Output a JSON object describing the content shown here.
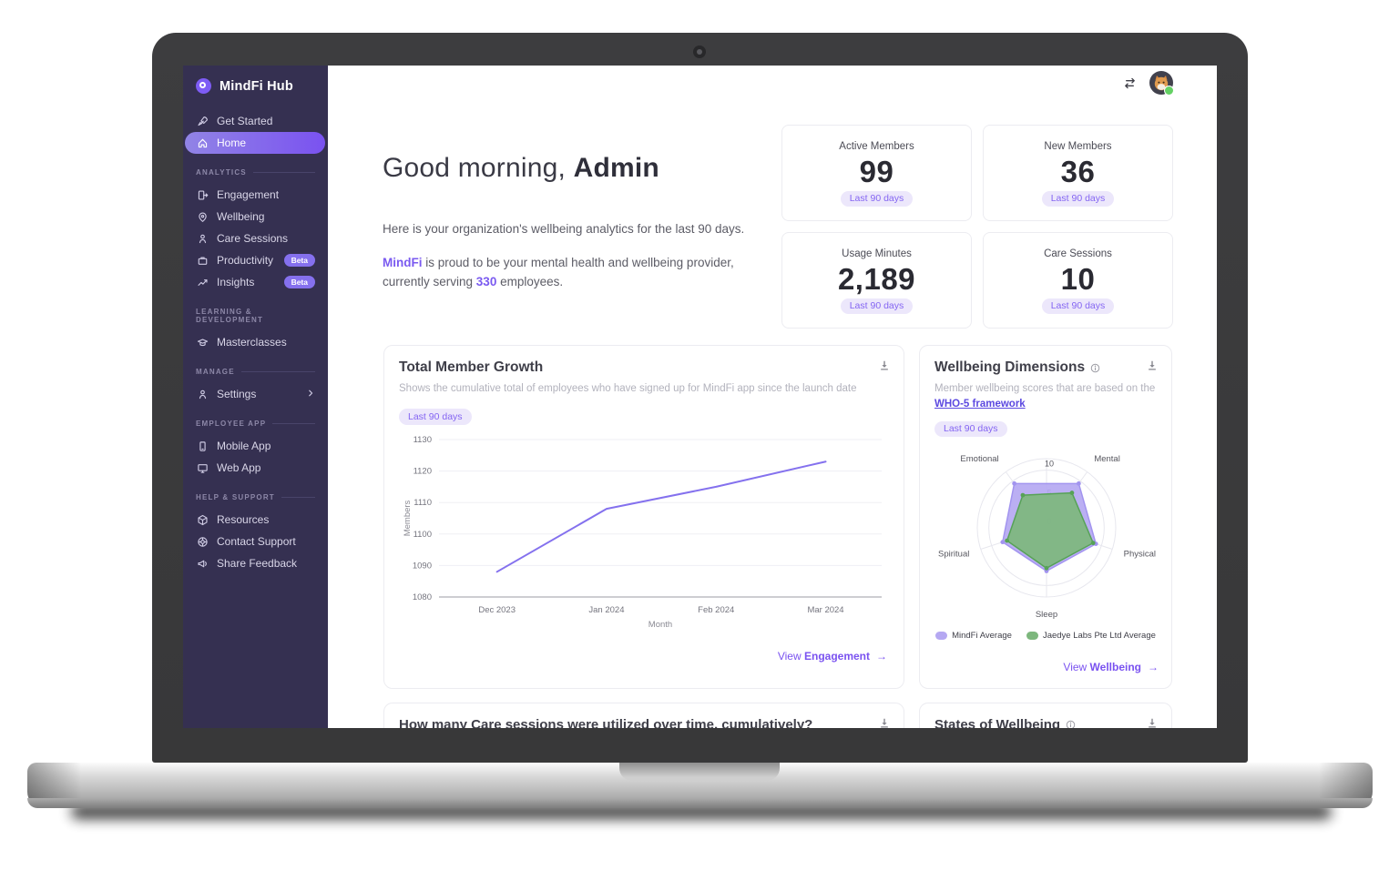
{
  "brand": {
    "name": "MindFi Hub"
  },
  "sidebar": {
    "primary": [
      {
        "label": "Get Started",
        "icon": "rocket"
      },
      {
        "label": "Home",
        "icon": "home",
        "active": true
      }
    ],
    "sections": [
      {
        "title": "ANALYTICS",
        "items": [
          {
            "label": "Engagement",
            "icon": "engagement"
          },
          {
            "label": "Wellbeing",
            "icon": "wellbeing"
          },
          {
            "label": "Care Sessions",
            "icon": "care-sessions"
          },
          {
            "label": "Productivity",
            "icon": "productivity",
            "badge": "Beta"
          },
          {
            "label": "Insights",
            "icon": "insights",
            "badge": "Beta"
          }
        ]
      },
      {
        "title": "LEARNING & DEVELOPMENT",
        "items": [
          {
            "label": "Masterclasses",
            "icon": "masterclasses"
          }
        ]
      },
      {
        "title": "MANAGE",
        "items": [
          {
            "label": "Settings",
            "icon": "settings",
            "chevron": true
          }
        ]
      },
      {
        "title": "EMPLOYEE APP",
        "items": [
          {
            "label": "Mobile App",
            "icon": "mobile"
          },
          {
            "label": "Web App",
            "icon": "web"
          }
        ]
      },
      {
        "title": "HELP & SUPPORT",
        "items": [
          {
            "label": "Resources",
            "icon": "resources"
          },
          {
            "label": "Contact Support",
            "icon": "support"
          },
          {
            "label": "Share Feedback",
            "icon": "feedback"
          }
        ]
      }
    ]
  },
  "greeting": {
    "prefix": "Good morning, ",
    "name": "Admin",
    "line1": "Here is your organization's wellbeing analytics for the last 90 days.",
    "brand": "MindFi",
    "line2_mid": " is proud to be your mental health and wellbeing provider, currently serving ",
    "count": "330",
    "line2_end": " employees."
  },
  "stats": [
    {
      "label": "Active Members",
      "value": "99",
      "badge": "Last 90 days"
    },
    {
      "label": "New Members",
      "value": "36",
      "badge": "Last 90 days"
    },
    {
      "label": "Usage Minutes",
      "value": "2,189",
      "badge": "Last 90 days"
    },
    {
      "label": "Care Sessions",
      "value": "10",
      "badge": "Last 90 days"
    }
  ],
  "cards": {
    "growth": {
      "title": "Total Member Growth",
      "subtitle": "Shows the cumulative total of employees who have signed up for MindFi app since the launch date",
      "badge": "Last 90 days",
      "link_prefix": "View ",
      "link_bold": "Engagement",
      "arrow": "→"
    },
    "dimensions": {
      "title": "Wellbeing Dimensions",
      "subtitle": "Member wellbeing scores that are based on the ",
      "link": "WHO-5 framework",
      "badge": "Last 90 days",
      "link_prefix": "View ",
      "link_bold": "Wellbeing",
      "arrow": "→"
    },
    "bottom_left": {
      "title": "How many Care sessions were utilized over time, cumulatively?"
    },
    "bottom_right": {
      "title": "States of Wellbeing"
    }
  },
  "chart_data": [
    {
      "type": "line",
      "title": "Total Member Growth",
      "x": [
        "Dec 2023",
        "Jan 2024",
        "Feb 2024",
        "Mar 2024"
      ],
      "values": [
        1088,
        1108,
        1115,
        1123
      ],
      "xlabel": "Month",
      "ylabel": "Members",
      "ylim": [
        1080,
        1130
      ],
      "ytick_step": 10,
      "line_color": "#8471ee",
      "grid": true,
      "legend_position": "none"
    },
    {
      "type": "radar",
      "title": "Wellbeing Dimensions",
      "axes": [
        "Mental",
        "Physical",
        "Sleep",
        "Spiritual",
        "Emotional"
      ],
      "rmax": 12,
      "ticks": [
        0,
        5,
        10
      ],
      "series": [
        {
          "name": "MindFi Average",
          "values": [
            9.5,
            9,
            7.5,
            8,
            9.5
          ],
          "stroke": "#a294ef",
          "fill": "#b5a8f2"
        },
        {
          "name": "Jaedye Labs Pte Ltd Average",
          "values": [
            7.5,
            8.5,
            7,
            7.2,
            7
          ],
          "stroke": "#57a257",
          "fill": "#7db77d"
        }
      ],
      "legend_position": "bottom"
    }
  ],
  "colors": {
    "accent": "#7a5af0",
    "sidebar_bg": "#353051",
    "badge_bg": "#ece7fb",
    "badge_text": "#8465f2",
    "status_online": "#64d164"
  }
}
